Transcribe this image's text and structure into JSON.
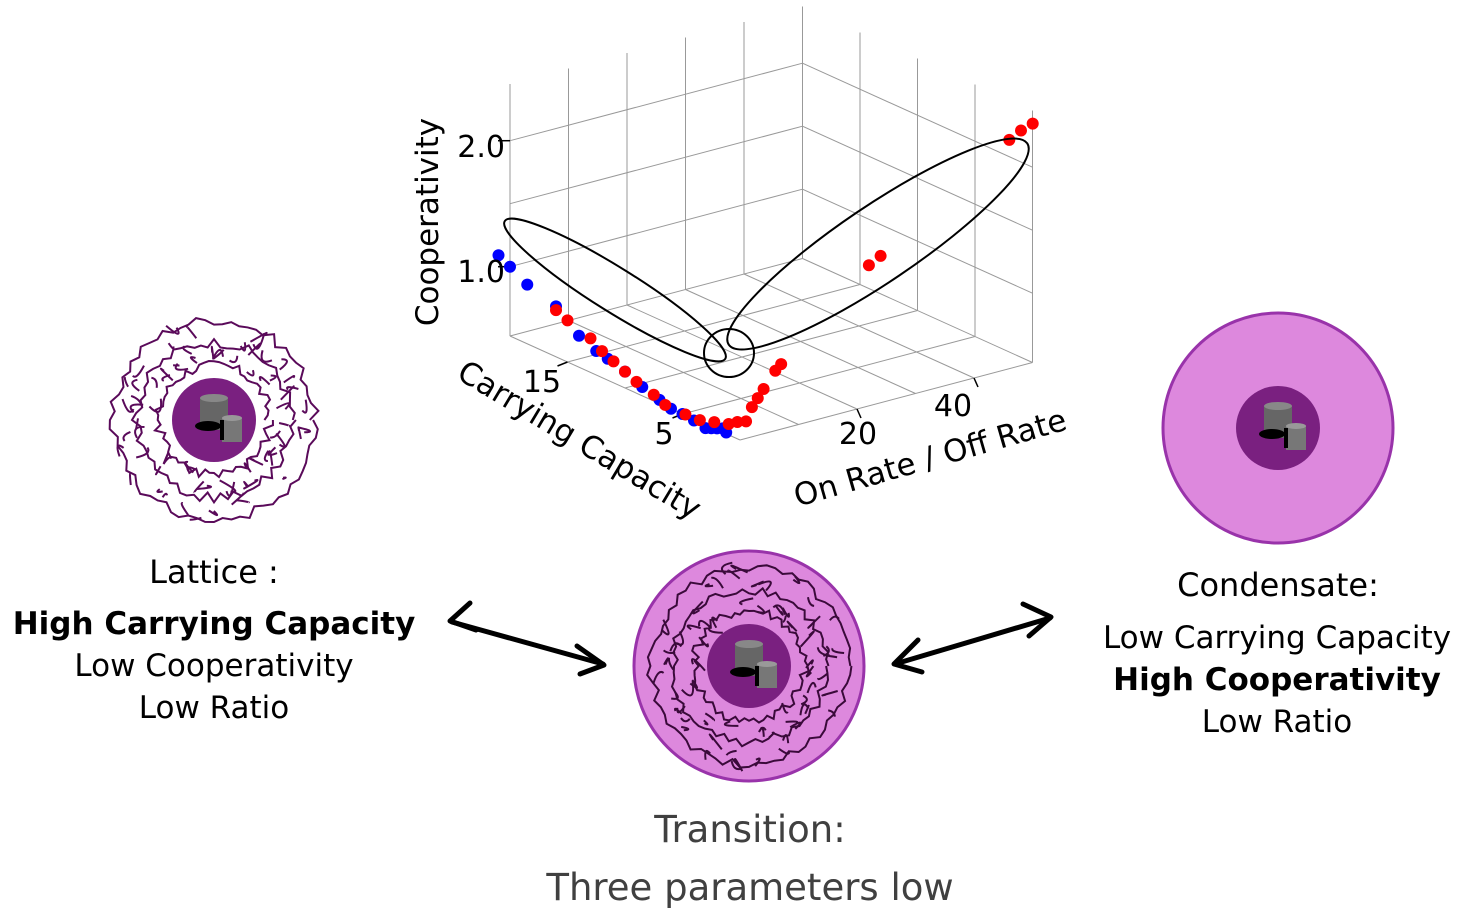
{
  "chart_data": {
    "type": "scatter",
    "projection": "3d",
    "axes": {
      "x": {
        "label": "Carrying Capacity",
        "ticks": [
          15,
          5
        ]
      },
      "y": {
        "label": "On Rate / Off Rate",
        "ticks": [
          20,
          40
        ]
      },
      "z": {
        "label": "Cooperativity",
        "ticks": [
          "1.0",
          "2.0"
        ]
      }
    },
    "series": [
      {
        "color": "#0000ff",
        "points": [
          [
            21,
            0,
            1.05
          ],
          [
            20,
            0,
            1.0
          ],
          [
            18.5,
            0,
            0.92
          ],
          [
            16,
            0,
            0.85
          ],
          [
            14,
            0,
            0.7
          ],
          [
            12.5,
            0,
            0.64
          ],
          [
            11.5,
            0,
            0.62
          ],
          [
            10,
            0,
            0.58
          ],
          [
            8.5,
            0,
            0.52
          ],
          [
            7,
            0,
            0.48
          ],
          [
            6,
            0,
            0.45
          ],
          [
            5,
            0,
            0.45
          ],
          [
            4,
            0,
            0.44
          ],
          [
            3,
            0,
            0.42
          ],
          [
            2.5,
            0,
            0.44
          ],
          [
            2,
            0,
            0.46
          ],
          [
            1.5,
            0,
            0.48
          ],
          [
            1.2,
            0,
            0.46
          ]
        ]
      },
      {
        "color": "#ff0000",
        "points": [
          [
            16,
            0,
            0.82
          ],
          [
            15,
            0,
            0.78
          ],
          [
            13,
            0,
            0.72
          ],
          [
            12,
            0,
            0.66
          ],
          [
            11,
            0,
            0.62
          ],
          [
            10,
            0,
            0.58
          ],
          [
            9,
            0,
            0.54
          ],
          [
            7.5,
            0,
            0.5
          ],
          [
            6.5,
            0,
            0.46
          ],
          [
            5,
            0.5,
            0.44
          ],
          [
            4,
            1,
            0.43
          ],
          [
            3,
            1.5,
            0.45
          ],
          [
            2,
            2,
            0.47
          ],
          [
            1.5,
            2.5,
            0.5
          ],
          [
            1,
            3,
            0.52
          ],
          [
            1,
            4,
            0.62
          ],
          [
            1,
            5,
            0.68
          ],
          [
            1,
            6,
            0.74
          ],
          [
            1,
            8,
            0.86
          ],
          [
            1,
            9,
            0.9
          ],
          [
            1,
            24,
            1.5
          ],
          [
            1,
            26,
            1.55
          ],
          [
            1,
            48,
            2.2
          ],
          [
            1,
            50,
            2.25
          ],
          [
            1,
            52,
            2.28
          ]
        ]
      }
    ],
    "highlight_groups": [
      "high carrying capacity",
      "transition",
      "high ratio"
    ],
    "grid": true
  },
  "diagram": {
    "lattice": {
      "title": "Lattice :",
      "lines": [
        "High Carrying Capacity",
        "Low Cooperativity",
        "Low Ratio"
      ],
      "bold_line": 0
    },
    "condensate": {
      "title": "Condensate:",
      "lines": [
        "Low Carrying Capacity",
        "High Cooperativity",
        "Low Ratio"
      ],
      "bold_line": 1
    },
    "transition": {
      "title": "Transition:",
      "subtitle": "Three parameters low"
    },
    "colors": {
      "red_points": "#ff0000",
      "blue_points": "#0000ff",
      "core": "#7a2080",
      "condensate_fill": "#dd88dd",
      "condensate_edge": "#9933aa",
      "lattice_strands": "#5a0a5a",
      "text_grey": "#404040"
    }
  }
}
